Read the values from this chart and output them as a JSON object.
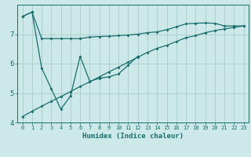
{
  "xlabel": "Humidex (Indice chaleur)",
  "bg_color": "#cce8e8",
  "line_color": "#1a6e6e",
  "grid_color": "#aacccc",
  "series1_x": [
    0,
    1,
    2,
    3,
    4,
    5,
    6,
    7,
    8,
    9,
    10,
    11,
    12,
    13,
    14,
    15,
    16,
    17,
    18,
    19,
    20,
    21,
    22,
    23
  ],
  "series1_y": [
    7.6,
    7.75,
    6.85,
    6.85,
    6.85,
    6.85,
    6.85,
    6.9,
    6.92,
    6.93,
    6.95,
    6.97,
    7.0,
    7.05,
    7.08,
    7.15,
    7.25,
    7.35,
    7.37,
    7.38,
    7.37,
    7.28,
    7.28,
    7.28
  ],
  "series2_x": [
    0,
    1,
    2,
    3,
    4,
    5,
    6,
    7,
    8,
    9,
    10,
    11,
    12
  ],
  "series2_y": [
    7.6,
    7.75,
    5.85,
    5.15,
    4.45,
    4.9,
    6.25,
    5.4,
    5.5,
    5.55,
    5.65,
    5.95,
    6.25
  ],
  "series3_x": [
    0,
    1,
    2,
    3,
    4,
    5,
    6,
    7,
    8,
    9,
    10,
    11,
    12,
    13,
    14,
    15,
    16,
    17,
    18,
    19,
    20,
    21,
    22,
    23
  ],
  "series3_y": [
    4.2,
    4.38,
    4.55,
    4.72,
    4.88,
    5.05,
    5.22,
    5.38,
    5.55,
    5.72,
    5.88,
    6.05,
    6.22,
    6.38,
    6.52,
    6.62,
    6.75,
    6.88,
    6.95,
    7.05,
    7.12,
    7.18,
    7.23,
    7.28
  ],
  "ylim": [
    4.0,
    8.0
  ],
  "yticks": [
    4,
    5,
    6,
    7
  ],
  "xlim": [
    -0.5,
    23.5
  ],
  "xticks": [
    0,
    1,
    2,
    3,
    4,
    5,
    6,
    7,
    8,
    9,
    10,
    11,
    12,
    13,
    14,
    15,
    16,
    17,
    18,
    19,
    20,
    21,
    22,
    23
  ],
  "marker": "D",
  "markersize": 2.0,
  "linewidth": 0.9,
  "axis_fontsize": 6.5,
  "tick_fontsize": 5.0,
  "ytick_fontsize": 6.5
}
